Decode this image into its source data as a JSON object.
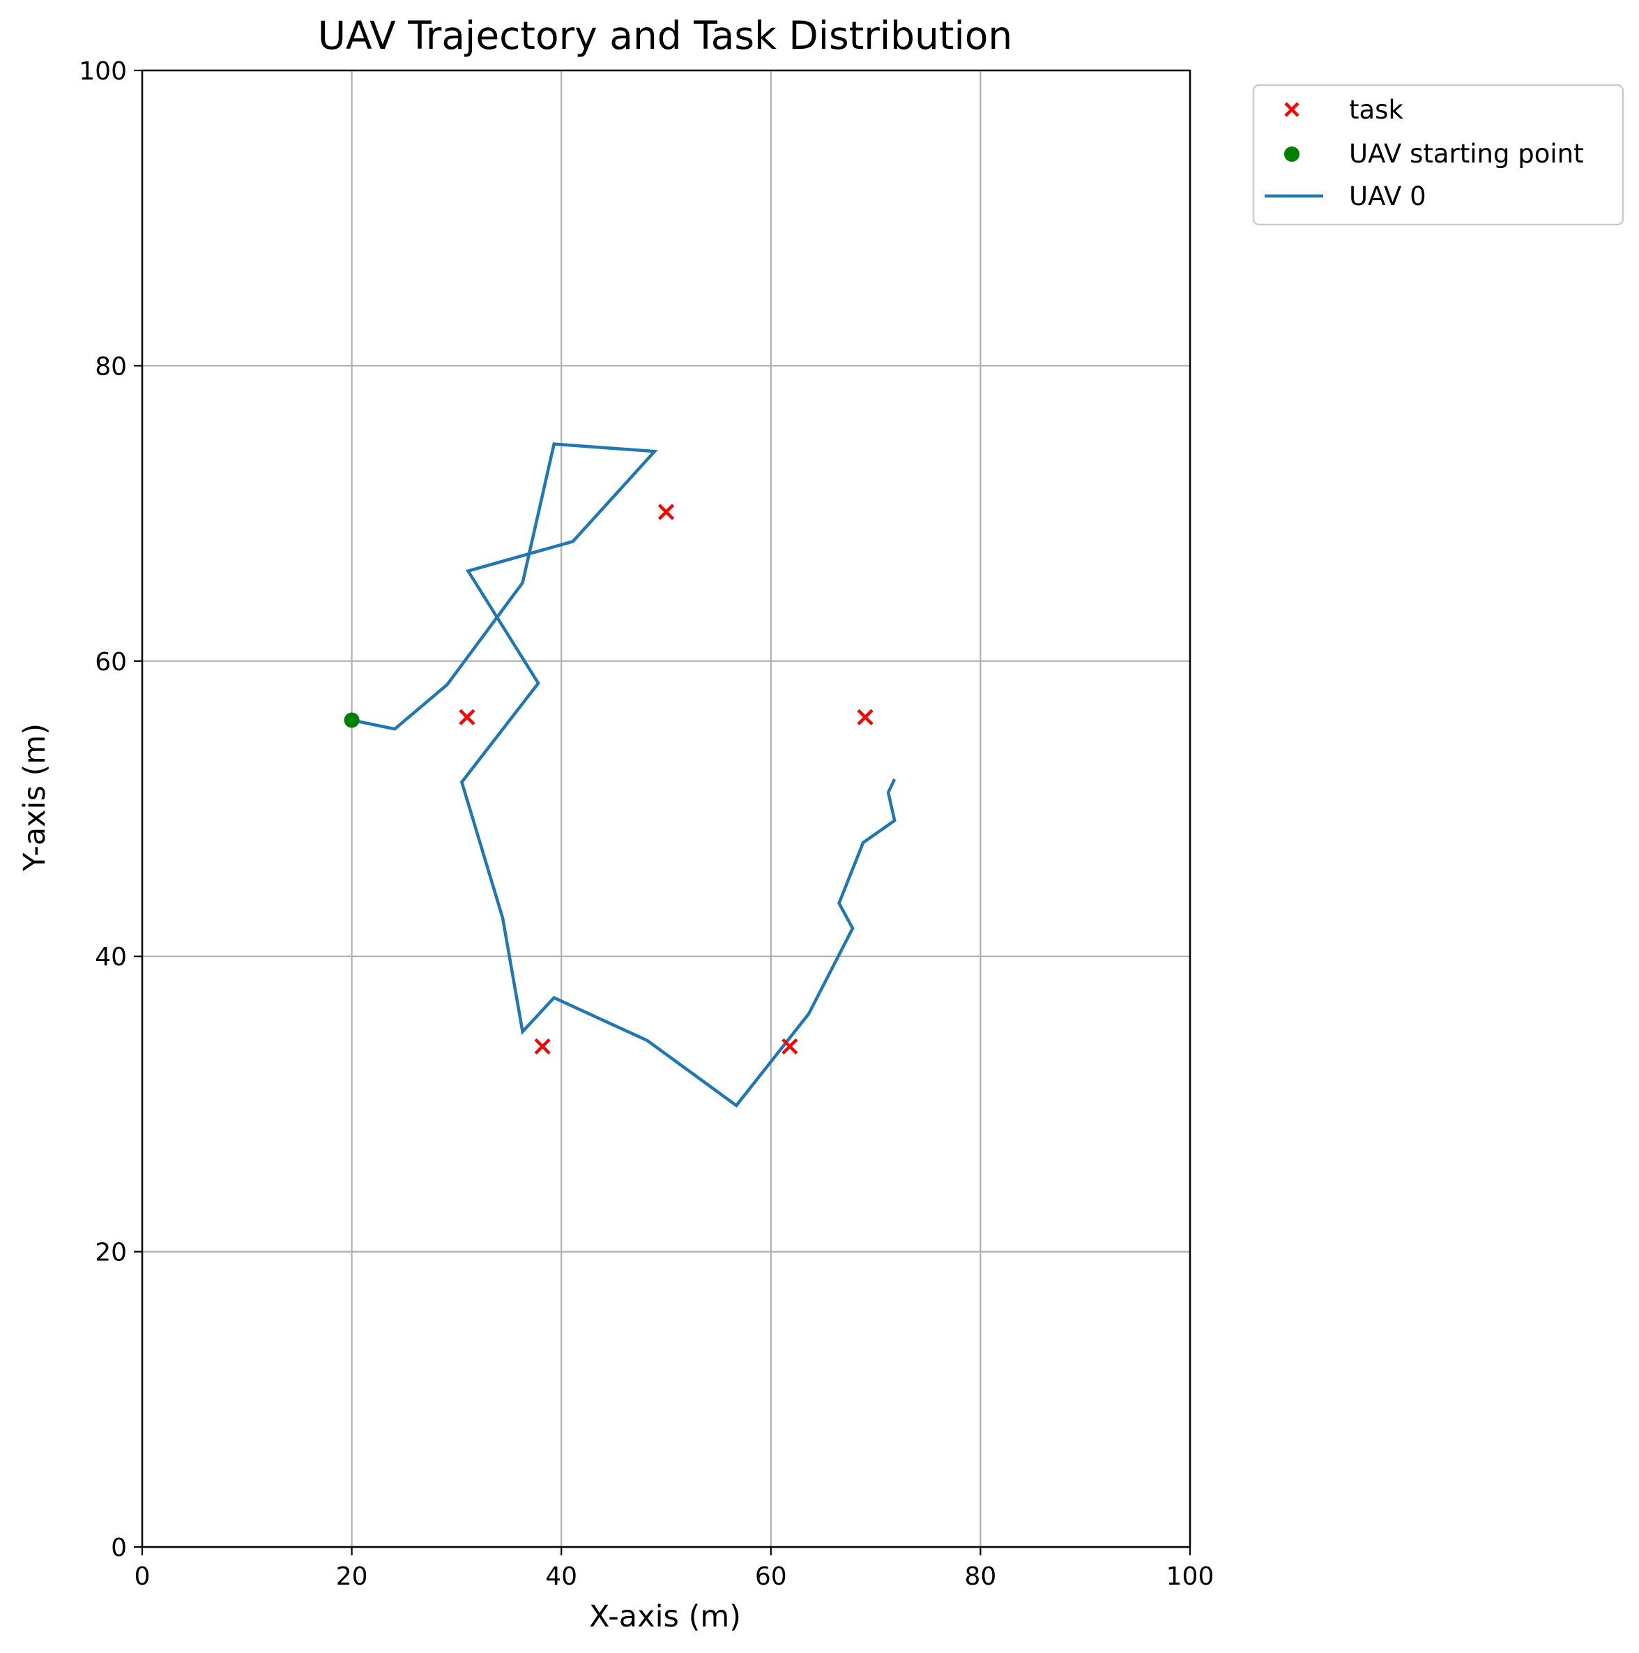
{
  "chart_data": {
    "type": "scatter",
    "title": "UAV Trajectory and Task Distribution",
    "xlabel": "X-axis (m)",
    "ylabel": "Y-axis (m)",
    "xlim": [
      0,
      100
    ],
    "ylim": [
      0,
      100
    ],
    "xticks": [
      "0",
      "20",
      "40",
      "60",
      "80",
      "100"
    ],
    "yticks": [
      "0",
      "20",
      "40",
      "60",
      "80",
      "100"
    ],
    "grid": true,
    "legend_position": "outside-top-right",
    "legend": [
      {
        "label": "task",
        "marker": "x",
        "color": "#ff0000"
      },
      {
        "label": "UAV starting point",
        "marker": "circle",
        "color": "#008000"
      },
      {
        "label": "UAV 0",
        "marker": "line",
        "color": "#1f77b4"
      }
    ],
    "series": [
      {
        "name": "task",
        "kind": "scatter",
        "marker": "x",
        "color": "#ff0000",
        "points": [
          [
            31,
            56.2
          ],
          [
            50,
            70.1
          ],
          [
            69,
            56.2
          ],
          [
            38.2,
            33.9
          ],
          [
            61.8,
            33.9
          ]
        ]
      },
      {
        "name": "UAV starting point",
        "kind": "scatter",
        "marker": "circle",
        "color": "#008000",
        "points": [
          [
            20,
            56
          ]
        ]
      },
      {
        "name": "UAV 0",
        "kind": "line",
        "color": "#1f77b4",
        "points": [
          [
            20,
            56
          ],
          [
            24.1,
            55.4
          ],
          [
            29.1,
            58.4
          ],
          [
            36.3,
            65.3
          ],
          [
            39.3,
            74.7
          ],
          [
            48.9,
            74.2
          ],
          [
            41.1,
            68.1
          ],
          [
            31.1,
            66.1
          ],
          [
            37.8,
            58.5
          ],
          [
            30.5,
            51.8
          ],
          [
            34.4,
            42.6
          ],
          [
            36.3,
            34.9
          ],
          [
            39.3,
            37.2
          ],
          [
            48.2,
            34.3
          ],
          [
            56.7,
            29.9
          ],
          [
            63.6,
            36.1
          ],
          [
            67.8,
            41.9
          ],
          [
            66.5,
            43.6
          ],
          [
            68.8,
            47.7
          ],
          [
            71.8,
            49.2
          ],
          [
            71.2,
            51.1
          ],
          [
            71.8,
            52
          ]
        ]
      }
    ]
  }
}
